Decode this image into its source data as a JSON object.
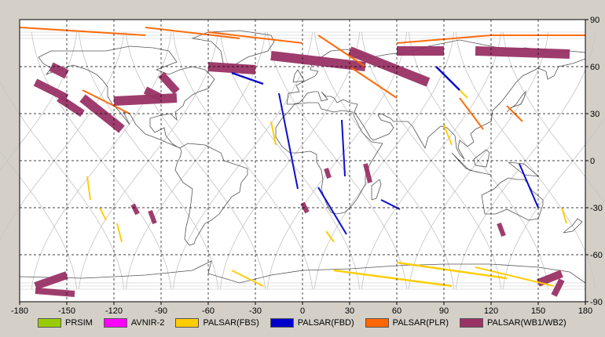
{
  "map": {
    "lon_ticks": [
      "-180",
      "-150",
      "-120",
      "-90",
      "-60",
      "-30",
      "0",
      "30",
      "60",
      "90",
      "120",
      "150",
      "180"
    ],
    "lat_ticks": [
      "90",
      "60",
      "30",
      "0",
      "-30",
      "-60",
      "-90"
    ],
    "lon_range": [
      -180,
      180
    ],
    "lat_range": [
      -90,
      90
    ],
    "grid": "dashed",
    "colors": {
      "frame_bg": "#d4d0c8",
      "map_bg": "#ffffff",
      "coast": "#555555",
      "orbit": "#c4c4c4",
      "grid": "#000000"
    }
  },
  "legend": {
    "items": [
      {
        "label": "PRSIM",
        "color": "#99cc00"
      },
      {
        "label": "AVNIR-2",
        "color": "#ff00ff"
      },
      {
        "label": "PALSAR(FBS)",
        "color": "#ffcc00"
      },
      {
        "label": "PALSAR(FBD)",
        "color": "#0000cc"
      },
      {
        "label": "PALSAR(PLR)",
        "color": "#ff6600"
      },
      {
        "label": "PALSAR(WB1/WB2)",
        "color": "#993366"
      }
    ]
  }
}
